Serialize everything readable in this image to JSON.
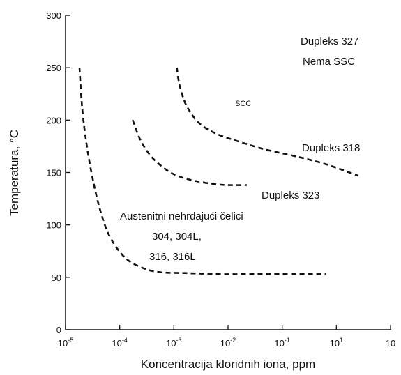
{
  "chart_data": {
    "type": "line",
    "title": "",
    "xlabel": "Koncentracija kloridnih iona, ppm",
    "ylabel": "Temperatura, °C",
    "x_scale": "log",
    "xlim": [
      1e-05,
      100
    ],
    "ylim": [
      0,
      300
    ],
    "grid": false,
    "x_ticks": [
      {
        "base": "10",
        "exp": "-5"
      },
      {
        "base": "10",
        "exp": "-4"
      },
      {
        "base": "10",
        "exp": "-3"
      },
      {
        "base": "10",
        "exp": "-2"
      },
      {
        "base": "10",
        "exp": "-1"
      },
      {
        "base": "10",
        "exp": "1"
      },
      {
        "base": "10",
        "exp": ""
      }
    ],
    "y_ticks": [
      "0",
      "50",
      "100",
      "150",
      "200",
      "250",
      "300"
    ],
    "series": [
      {
        "x": [
          2e-05,
          2.3e-05,
          3e-05,
          4.5e-05,
          7e-05,
          0.00011,
          0.0002,
          0.0004,
          0.001,
          0.004,
          0.02,
          0.1,
          4.0
        ],
        "y": [
          250,
          210,
          170,
          130,
          100,
          82,
          68,
          60,
          55,
          54,
          53,
          53,
          53
        ]
      },
      {
        "x": [
          0.00028,
          0.0004,
          0.00065,
          0.0011,
          0.002,
          0.004,
          0.008,
          0.016,
          0.03,
          0.08
        ],
        "y": [
          200,
          182,
          167,
          157,
          149,
          144,
          141,
          139,
          138,
          138
        ]
      },
      {
        "x": [
          0.0025,
          0.0028,
          0.0035,
          0.0045,
          0.0065,
          0.01,
          0.02,
          0.05,
          0.2,
          1.0,
          4.0,
          20.0
        ],
        "y": [
          250,
          235,
          220,
          210,
          200,
          193,
          186,
          180,
          172,
          165,
          158,
          147
        ]
      }
    ],
    "annotations": {
      "duplex_327": "Dupleks 327",
      "no_ssc": "Nema SSC",
      "scc": "SCC",
      "duplex_318": "Dupleks 318",
      "duplex_323": "Dupleks 323",
      "austenitic": "Austenitni nehrđajući čelici",
      "austenitic_grades_1": "304, 304L,",
      "austenitic_grades_2": "316, 316L"
    }
  }
}
